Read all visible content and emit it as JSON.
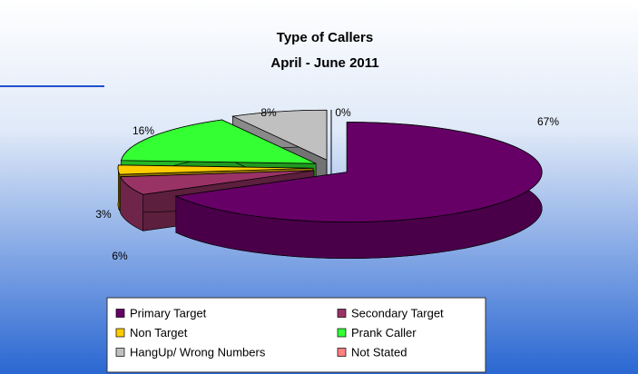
{
  "chart_data": {
    "type": "pie3d",
    "title": "Type of Callers",
    "subtitle": "April - June 2011",
    "categories": [
      "Primary Target",
      "Secondary Target",
      "Non Target",
      "Prank Caller",
      "HangUp/ Wrong Numbers",
      "Not Stated"
    ],
    "values": [
      67,
      6,
      3,
      16,
      8,
      0
    ],
    "value_labels": [
      "67%",
      "6%",
      "3%",
      "16%",
      "8%",
      "0%"
    ],
    "colors": [
      "#660066",
      "#993366",
      "#ffcc00",
      "#33ff33",
      "#c0c0c0",
      "#ff8080"
    ],
    "legend": "bottom"
  }
}
